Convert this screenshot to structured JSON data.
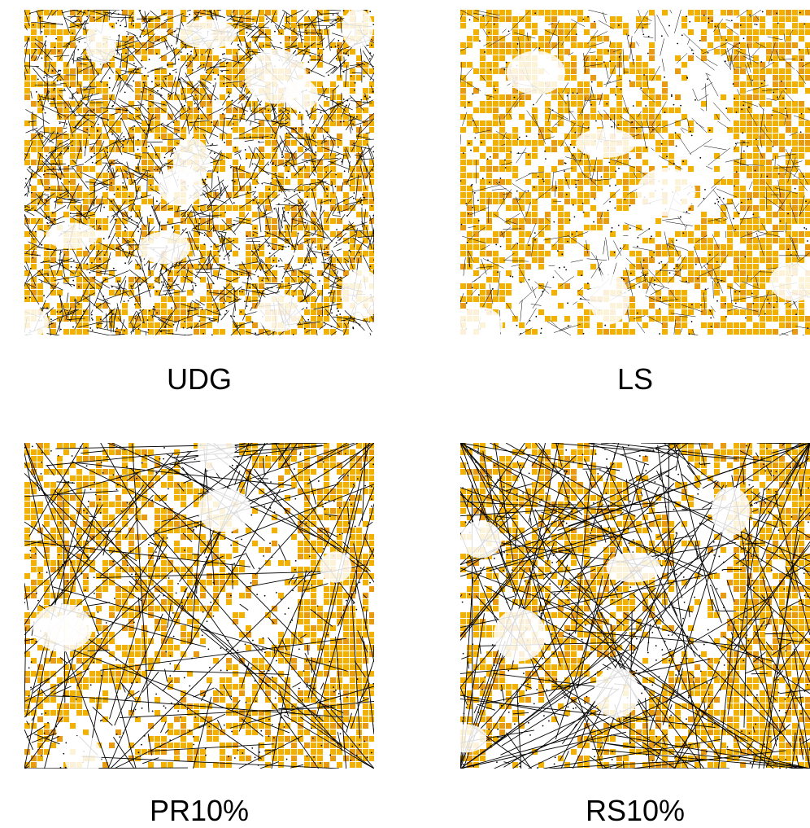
{
  "colors": {
    "field": "#f2b100",
    "field_dark": "#e89a10",
    "edges": "#000000",
    "background": "#ffffff"
  },
  "panels": [
    {
      "key": "udg",
      "caption": "UDG",
      "style": "dense-mesh"
    },
    {
      "key": "ls",
      "caption": "LS",
      "style": "sparse-mesh"
    },
    {
      "key": "pr",
      "caption": "PR10%",
      "style": "long-links-pr"
    },
    {
      "key": "rs",
      "caption": "RS10%",
      "style": "long-links-rs"
    }
  ]
}
